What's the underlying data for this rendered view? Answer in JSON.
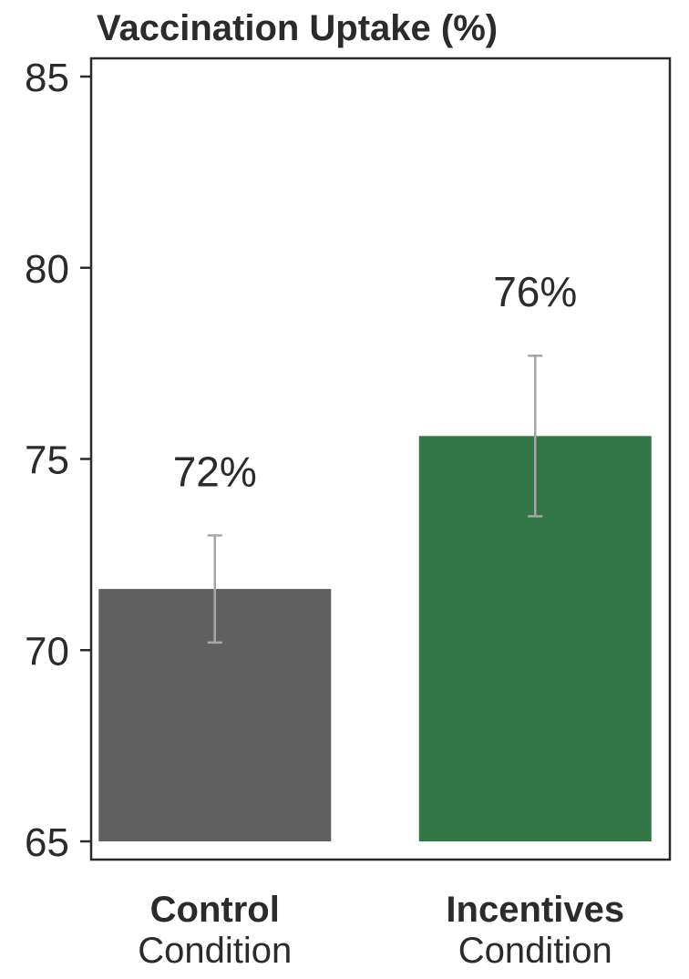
{
  "chart_data": {
    "type": "bar",
    "title": "Vaccination Uptake (%)",
    "categories": [
      "Control",
      "Incentives"
    ],
    "category_sublabel": "Condition",
    "values": [
      71.6,
      75.6
    ],
    "error_low": [
      70.2,
      73.5
    ],
    "error_high": [
      73.0,
      77.7
    ],
    "data_labels": [
      "72%",
      "76%"
    ],
    "colors": [
      "#606060",
      "#337747"
    ],
    "error_bar_color": "#a6a6a6",
    "ylim": [
      65,
      85
    ],
    "yticks": [
      65,
      70,
      75,
      80,
      85
    ],
    "xlabel": "",
    "ylabel": "",
    "grid": false,
    "legend": "none"
  }
}
